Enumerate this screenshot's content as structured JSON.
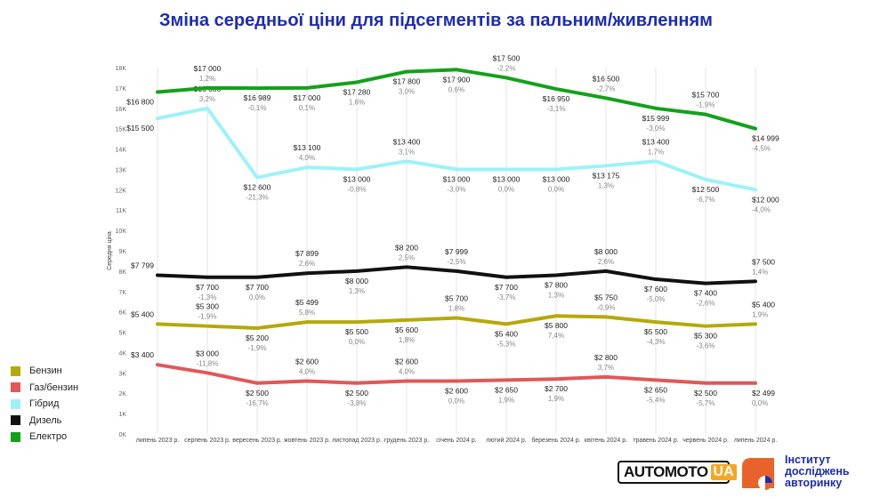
{
  "title": "Зміна середньої ціни для підсегментів за пальним/живленням",
  "logos": {
    "automoto_main": "AUTOMOTO",
    "automoto_ua": "UA",
    "institute_lines": [
      "Інститут",
      "досліджень",
      "авторинку"
    ]
  },
  "chart_data": {
    "type": "line",
    "ylabel": "Середня ціна",
    "ylim": [
      0,
      18000
    ],
    "yticks": [
      0,
      1000,
      2000,
      3000,
      4000,
      5000,
      6000,
      7000,
      8000,
      9000,
      10000,
      11000,
      12000,
      13000,
      14000,
      15000,
      16000,
      17000,
      18000
    ],
    "ytick_labels": [
      "0K",
      "1K",
      "2K",
      "3K",
      "4K",
      "5K",
      "6K",
      "7K",
      "8K",
      "9K",
      "10K",
      "11K",
      "12K",
      "13K",
      "14K",
      "15K",
      "16K",
      "17K",
      "18K"
    ],
    "categories": [
      "липень 2023 р.",
      "серпень 2023 р.",
      "вересень 2023 р.",
      "жовтень 2023 р.",
      "листопад 2023 р.",
      "грудень 2023 р.",
      "січень 2024 р.",
      "лютий 2024 р.",
      "березень 2024 р.",
      "квітень 2024 р.",
      "травень 2024 р.",
      "червень 2024 р.",
      "липень 2024 р."
    ],
    "grid": "vertical",
    "legend": "bottom-left",
    "series": [
      {
        "name": "Бензин",
        "color": "#b5a90a",
        "values": [
          5400,
          5300,
          5200,
          5499,
          5500,
          5600,
          5700,
          5400,
          5800,
          5750,
          5500,
          5300,
          5400
        ],
        "labels": [
          "$5 400",
          "$5 300",
          "$5 200",
          "$5 499",
          "$5 500",
          "$5 600",
          "$5 700",
          "$5 400",
          "$5 800",
          "$5 750",
          "$5 500",
          "$5 300",
          "$5 400"
        ],
        "pct": [
          "",
          "-1,9%",
          "-1,9%",
          "5,8%",
          "0,0%",
          "1,8%",
          "1,8%",
          "-5,3%",
          "7,4%",
          "-0,9%",
          "-4,3%",
          "-3,6%",
          "1,9%"
        ]
      },
      {
        "name": "Газ/бензин",
        "color": "#e05858",
        "values": [
          3400,
          3000,
          2500,
          2600,
          2500,
          2600,
          2600,
          2650,
          2700,
          2800,
          2650,
          2500,
          2499
        ],
        "labels": [
          "$3 400",
          "$3 000",
          "$2 500",
          "$2 600",
          "$2 500",
          "$2 600",
          "$2 600",
          "$2 650",
          "$2 700",
          "$2 800",
          "$2 650",
          "$2 500",
          "$2 499"
        ],
        "pct": [
          "",
          "-11,8%",
          "-16,7%",
          "4,0%",
          "-3,8%",
          "4,0%",
          "0,0%",
          "1,9%",
          "1,9%",
          "3,7%",
          "-5,4%",
          "-5,7%",
          "0,0%"
        ]
      },
      {
        "name": "Гібрид",
        "color": "#9cf2f7",
        "values": [
          15500,
          16000,
          12600,
          13100,
          13000,
          13400,
          13000,
          13000,
          13000,
          13175,
          13400,
          12500,
          12000
        ],
        "labels": [
          "$15 500",
          "$16 000",
          "$12 600",
          "$13 100",
          "$13 000",
          "$13 400",
          "$13 000",
          "$13 000",
          "$13 000",
          "$13 175",
          "$13 400",
          "$12 500",
          "$12 000"
        ],
        "pct": [
          "",
          "3,2%",
          "-21,3%",
          "4,0%",
          "-0,8%",
          "3,1%",
          "-3,0%",
          "0,0%",
          "0,0%",
          "1,3%",
          "1,7%",
          "-6,7%",
          "-4,0%"
        ]
      },
      {
        "name": "Дизель",
        "color": "#111111",
        "values": [
          7799,
          7700,
          7700,
          7899,
          8000,
          8200,
          7999,
          7700,
          7800,
          8000,
          7600,
          7400,
          7500
        ],
        "labels": [
          "$7 799",
          "$7 700",
          "$7 700",
          "$7 899",
          "$8 000",
          "$8 200",
          "$7 999",
          "$7 700",
          "$7 800",
          "$8 000",
          "$7 600",
          "$7 400",
          "$7 500"
        ],
        "pct": [
          "",
          "-1,3%",
          "0,0%",
          "2,6%",
          "1,3%",
          "2,5%",
          "-2,5%",
          "-3,7%",
          "1,3%",
          "2,6%",
          "-5,0%",
          "-2,6%",
          "1,4%"
        ]
      },
      {
        "name": "Електро",
        "color": "#13a11a",
        "values": [
          16800,
          17000,
          16989,
          17000,
          17280,
          17800,
          17900,
          17500,
          16950,
          16500,
          15999,
          15700,
          14999
        ],
        "labels": [
          "$16 800",
          "$17 000",
          "$16 989",
          "$17 000",
          "$17 280",
          "$17 800",
          "$17 900",
          "$17 500",
          "$16 950",
          "$16 500",
          "$15 999",
          "$15 700",
          "$14 999"
        ],
        "pct": [
          "",
          "1,2%",
          "-0,1%",
          "0,1%",
          "1,6%",
          "3,0%",
          "0,6%",
          "-2,2%",
          "-3,1%",
          "-2,7%",
          "-3,0%",
          "-1,9%",
          "-4,5%"
        ]
      }
    ]
  }
}
